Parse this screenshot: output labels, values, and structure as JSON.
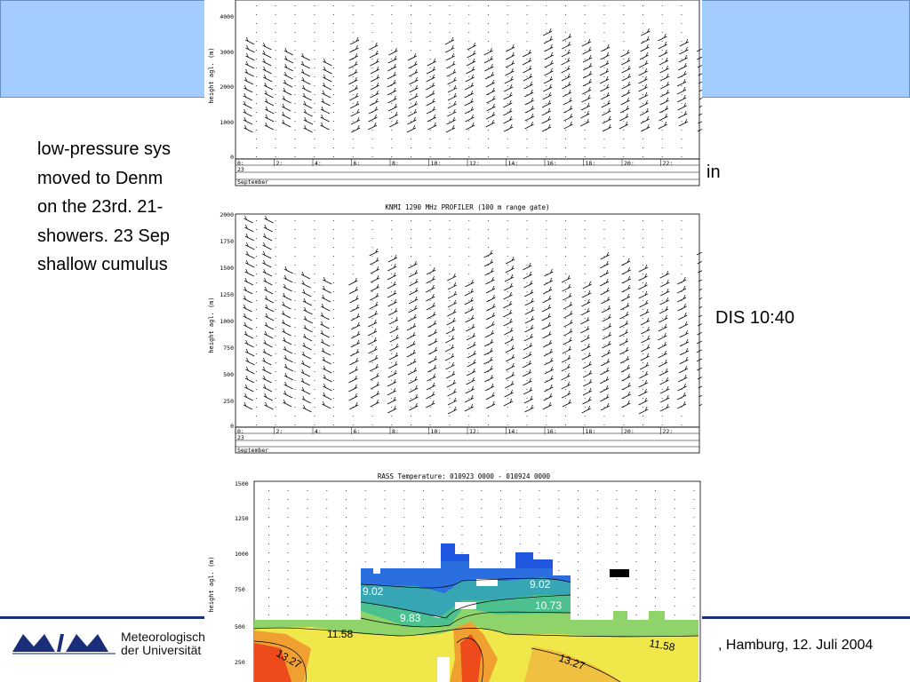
{
  "slide": {
    "body_lines": [
      "low-pressure sys",
      "moved to Denm",
      "on the 23rd. 21-",
      "showers. 23 Sep",
      "shallow cumulus"
    ],
    "line3_right": "in",
    "modis_text": "DIS  10:40",
    "footer": {
      "org_line1": "Meteorologisch",
      "org_line2": "der Universität",
      "date_text": ", Hamburg, 12. Juli 2004"
    }
  },
  "panels": {
    "top": {
      "ylabel": "height agl. (m)",
      "y_ticks": [
        "4000",
        "3000",
        "2000",
        "1000",
        "0"
      ],
      "x_ticks": [
        "0:",
        "2:",
        "4:",
        "6:",
        "8:",
        "10:",
        "12:",
        "14:",
        "16:",
        "18:",
        "20:",
        "22:"
      ],
      "day": "23",
      "month": "September"
    },
    "middle": {
      "title": "KNMI 1290 MHz PROFILER (100 m range gate)",
      "ylabel": "height agl. (m)",
      "y_ticks": [
        "2000",
        "1750",
        "1500",
        "1250",
        "1000",
        "750",
        "500",
        "250",
        "0"
      ],
      "x_ticks": [
        "0:",
        "2:",
        "4:",
        "6:",
        "8:",
        "10:",
        "12:",
        "14:",
        "16:",
        "18:",
        "20:",
        "22:"
      ],
      "day": "23",
      "month": "September"
    },
    "bottom": {
      "title": "RASS Temperature: 010923 0000 - 010924 0000",
      "ylabel": "height agl. (m)",
      "y_ticks": [
        "1500",
        "1250",
        "1000",
        "750",
        "500",
        "250"
      ],
      "contour_labels": [
        "9.02",
        "9.02",
        "10.73",
        "9.83",
        "11.58",
        "13.27",
        "13.27",
        "11.58"
      ]
    }
  }
}
